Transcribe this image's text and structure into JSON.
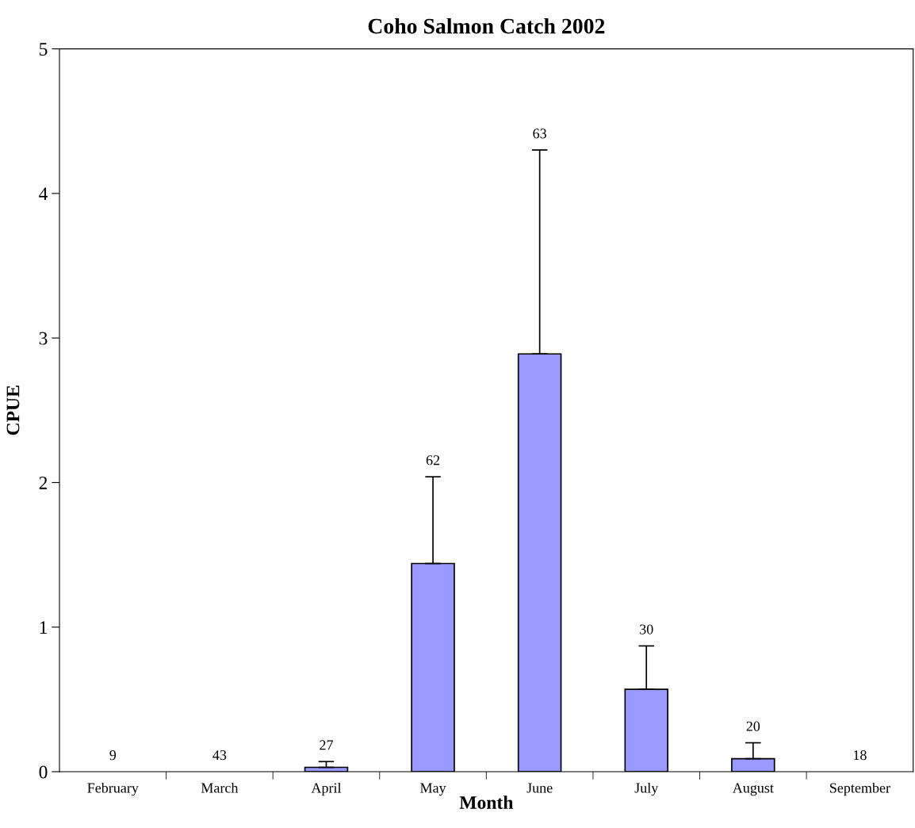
{
  "chart_data": {
    "type": "bar",
    "title": "Coho Salmon Catch 2002",
    "xlabel": "Month",
    "ylabel": "CPUE",
    "categories": [
      "February",
      "March",
      "April",
      "May",
      "June",
      "July",
      "August",
      "September"
    ],
    "values": [
      0,
      0,
      0.03,
      1.44,
      2.89,
      0.57,
      0.09,
      0
    ],
    "errors": [
      null,
      null,
      [
        0.03,
        0.07
      ],
      [
        1.44,
        2.04
      ],
      [
        2.89,
        4.3
      ],
      [
        0.57,
        0.87
      ],
      [
        0.09,
        0.2
      ],
      null
    ],
    "annotations": [
      {
        "text": "9",
        "x": "February",
        "y": 0
      },
      {
        "text": "43",
        "x": "March",
        "y": 0
      },
      {
        "text": "27",
        "x": "April",
        "y": 0.07
      },
      {
        "text": "62",
        "x": "May",
        "y": 2.04
      },
      {
        "text": "63",
        "x": "June",
        "y": 4.3
      },
      {
        "text": "30",
        "x": "July",
        "y": 0.87
      },
      {
        "text": "20",
        "x": "August",
        "y": 0.2
      },
      {
        "text": "18",
        "x": "September",
        "y": 0
      }
    ],
    "color": "#9999ff",
    "ylim": [
      0,
      5
    ],
    "yticks": [
      0,
      1,
      2,
      3,
      4,
      5
    ],
    "grid": false,
    "legend": false
  }
}
